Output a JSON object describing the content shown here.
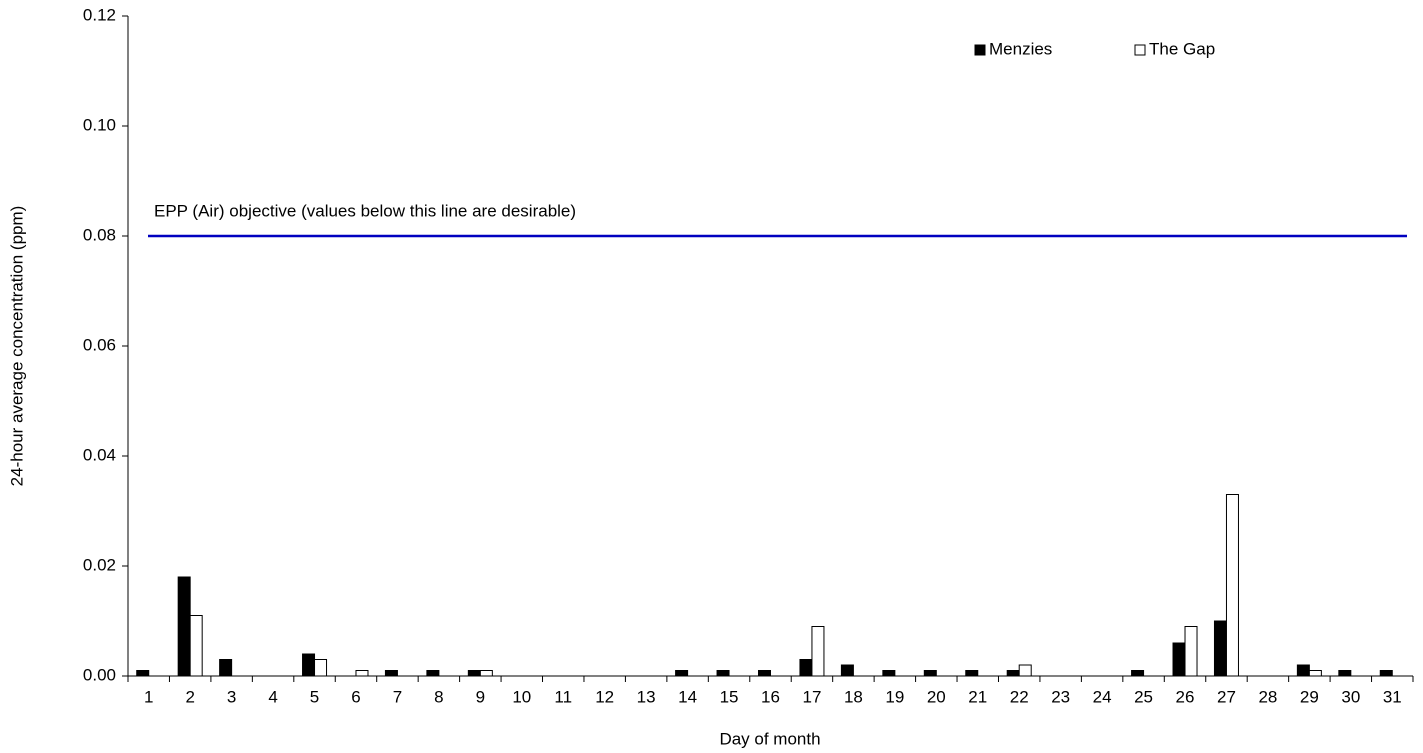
{
  "chart_data": {
    "type": "bar",
    "x_label": "Day of month",
    "y_label": "24-hour average concentration (ppm)",
    "categories": [
      "1",
      "2",
      "3",
      "4",
      "5",
      "6",
      "7",
      "8",
      "9",
      "10",
      "11",
      "12",
      "13",
      "14",
      "15",
      "16",
      "17",
      "18",
      "19",
      "20",
      "21",
      "22",
      "23",
      "24",
      "25",
      "26",
      "27",
      "28",
      "29",
      "30",
      "31"
    ],
    "series": [
      {
        "name": "Menzies",
        "color": "#000000",
        "values": [
          0.001,
          0.018,
          0.003,
          null,
          0.004,
          null,
          0.001,
          0.001,
          0.001,
          null,
          null,
          null,
          null,
          0.001,
          0.001,
          0.001,
          0.003,
          0.002,
          0.001,
          0.001,
          0.001,
          0.001,
          null,
          null,
          0.001,
          0.006,
          0.01,
          null,
          0.002,
          0.001,
          0.001
        ]
      },
      {
        "name": "The Gap",
        "color": "#ffffff",
        "values": [
          null,
          0.011,
          null,
          null,
          0.003,
          0.001,
          null,
          null,
          0.001,
          null,
          null,
          null,
          null,
          null,
          null,
          null,
          0.009,
          null,
          null,
          null,
          null,
          0.002,
          null,
          null,
          null,
          0.009,
          0.033,
          null,
          0.001,
          null,
          null
        ]
      }
    ],
    "ylim": [
      0,
      0.12
    ],
    "yticks": [
      {
        "value": 0,
        "label": "0.00"
      },
      {
        "value": 0.02,
        "label": "0.02"
      },
      {
        "value": 0.04,
        "label": "0.04"
      },
      {
        "value": 0.06,
        "label": "0.06"
      },
      {
        "value": 0.08,
        "label": "0.08"
      },
      {
        "value": 0.1,
        "label": "0.10"
      },
      {
        "value": 0.12,
        "label": "0.12"
      }
    ],
    "reference_line": {
      "value": 0.08,
      "label": "EPP (Air) objective (values below this line are desirable)",
      "color": "#0000c0"
    },
    "legend": "top-right",
    "grid": false
  }
}
